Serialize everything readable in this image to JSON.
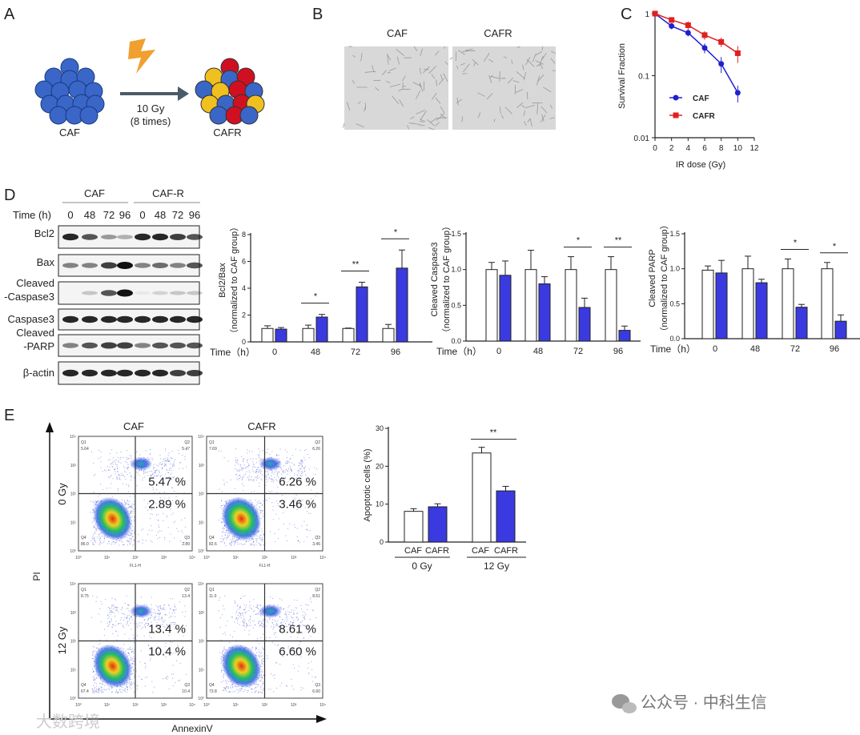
{
  "panel_labels": {
    "a": "A",
    "b": "B",
    "c": "C",
    "d": "D",
    "e": "E"
  },
  "panel_a": {
    "left_label": "CAF",
    "right_label": "CAFR",
    "dose": "10 Gy",
    "times": "(8 times)"
  },
  "panel_b": {
    "headers": [
      "CAF",
      "CAFR"
    ]
  },
  "panel_d_blot": {
    "groups": [
      "CAF",
      "CAF-R"
    ],
    "time_label": "Time (h)",
    "lanes": [
      "0",
      "48",
      "72",
      "96",
      "0",
      "48",
      "72",
      "96"
    ],
    "rows": [
      "Bcl2",
      "Bax",
      "Cleaved",
      "-Caspase3",
      "Caspase3",
      "Cleaved",
      "-PARP",
      "β-actin"
    ]
  },
  "colors": {
    "caf": "#ffffff",
    "cafr": "#3a3ae0",
    "caf_line": "#2020d0",
    "cafr_line": "#e02020"
  },
  "chart_data": [
    {
      "id": "survival",
      "type": "line",
      "xlabel": "IR dose (Gy)",
      "ylabel": "Survival Fraction",
      "yscale": "log",
      "ylim": [
        0.01,
        1
      ],
      "xlim": [
        0,
        12
      ],
      "xticks": [
        "0",
        "2",
        "4",
        "6",
        "8",
        "10",
        "12"
      ],
      "yticks": [
        "1",
        "0.1",
        "0.01"
      ],
      "legend_position": "center-left",
      "x": [
        0,
        2,
        4,
        6,
        8,
        10
      ],
      "series": [
        {
          "name": "CAF",
          "values": [
            1,
            0.63,
            0.49,
            0.28,
            0.155,
            0.053
          ],
          "errors": [
            0.05,
            0.07,
            0.06,
            0.05,
            0.045,
            0.016
          ]
        },
        {
          "name": "CAFR",
          "values": [
            1,
            0.79,
            0.65,
            0.45,
            0.35,
            0.23
          ],
          "errors": [
            0.05,
            0.07,
            0.1,
            0.07,
            0.06,
            0.07
          ]
        }
      ]
    },
    {
      "id": "bcl2bax",
      "type": "bar",
      "ylabel": "Bcl2/Bax",
      "ylabel2": "（normalized to CAF group）",
      "xlabel": "Time（h）",
      "ylim": [
        0,
        8
      ],
      "yticks": [
        "0",
        "2",
        "4",
        "6",
        "8"
      ],
      "categories": [
        "0",
        "48",
        "72",
        "96"
      ],
      "series": [
        {
          "name": "CAF",
          "values": [
            1,
            1,
            1,
            1
          ],
          "errors": [
            0.2,
            0.25,
            0.03,
            0.3
          ]
        },
        {
          "name": "CAF-R",
          "values": [
            0.95,
            1.85,
            4.1,
            5.5
          ],
          "errors": [
            0.12,
            0.2,
            0.35,
            1.35
          ]
        }
      ],
      "significance": [
        "",
        "*",
        "**",
        "*"
      ]
    },
    {
      "id": "caspase3",
      "type": "bar",
      "ylabel": "Cleaved Caspase3",
      "ylabel2": "（normalized to CAF group）",
      "xlabel": "Time（h）",
      "ylim": [
        0,
        1.5
      ],
      "yticks": [
        "0.0",
        "0.5",
        "1.0",
        "1.5"
      ],
      "categories": [
        "0",
        "48",
        "72",
        "96"
      ],
      "series": [
        {
          "name": "CAF",
          "values": [
            1,
            1,
            1,
            1
          ],
          "errors": [
            0.1,
            0.27,
            0.18,
            0.18
          ]
        },
        {
          "name": "CAF-R",
          "values": [
            0.92,
            0.8,
            0.47,
            0.15
          ],
          "errors": [
            0.2,
            0.1,
            0.13,
            0.06
          ]
        }
      ],
      "significance": [
        "",
        "",
        "*",
        "**"
      ]
    },
    {
      "id": "parp",
      "type": "bar",
      "ylabel": "Cleaved PARP",
      "ylabel2": "（normalized to CAF group）",
      "xlabel": "Time（h）",
      "ylim": [
        0,
        1.5
      ],
      "yticks": [
        "0.0",
        "0.5",
        "1.0",
        "1.5"
      ],
      "categories": [
        "0",
        "48",
        "72",
        "96"
      ],
      "series": [
        {
          "name": "CAF",
          "values": [
            0.98,
            1,
            1,
            1
          ],
          "errors": [
            0.06,
            0.18,
            0.14,
            0.09
          ]
        },
        {
          "name": "CAF-R",
          "values": [
            0.94,
            0.8,
            0.45,
            0.25
          ],
          "errors": [
            0.18,
            0.05,
            0.04,
            0.09
          ]
        }
      ],
      "significance": [
        "",
        "",
        "*",
        "*"
      ]
    },
    {
      "id": "apoptosis",
      "type": "bar",
      "ylabel": "Apoptotic cells (%)",
      "ylim": [
        0,
        30
      ],
      "yticks": [
        "0",
        "10",
        "20",
        "30"
      ],
      "categories": [
        "0 Gy",
        "12 Gy"
      ],
      "bar_labels": [
        "CAF",
        "CAFR"
      ],
      "series": [
        {
          "name": "CAF",
          "values": [
            8.1,
            23.5
          ],
          "errors": [
            0.7,
            1.5
          ]
        },
        {
          "name": "CAFR",
          "values": [
            9.3,
            13.5
          ],
          "errors": [
            0.8,
            1.2
          ]
        }
      ],
      "significance": [
        "",
        "**"
      ]
    },
    {
      "id": "flow",
      "type": "scatter",
      "xlabel": "AnnexinV",
      "ylabel": "PI",
      "axis_label": "FL1-H",
      "columns": [
        "CAF",
        "CAFR"
      ],
      "rows": [
        "0 Gy",
        "12 Gy"
      ],
      "ticks": [
        "10⁰",
        "10¹",
        "10²",
        "10³",
        "10⁴"
      ],
      "panels": [
        {
          "Q1": "5.64",
          "Q2": "5.47",
          "Q3": "2.89",
          "Q4": "86.0",
          "late": "5.47 %",
          "early": "2.89 %"
        },
        {
          "Q1": "7.69",
          "Q2": "6.26",
          "Q3": "3.46",
          "Q4": "82.6",
          "late": "6.26 %",
          "early": "3.46 %"
        },
        {
          "Q1": "8.75",
          "Q2": "13.4",
          "Q3": "10.4",
          "Q4": "67.4",
          "late": "13.4 %",
          "early": "10.4 %"
        },
        {
          "Q1": "11.0",
          "Q2": "8.61",
          "Q3": "6.60",
          "Q4": "73.8",
          "late": "8.61 %",
          "early": "6.60 %"
        }
      ]
    }
  ],
  "watermarks": {
    "right": "公众号 · 中科生信",
    "left": "大数跨境"
  }
}
